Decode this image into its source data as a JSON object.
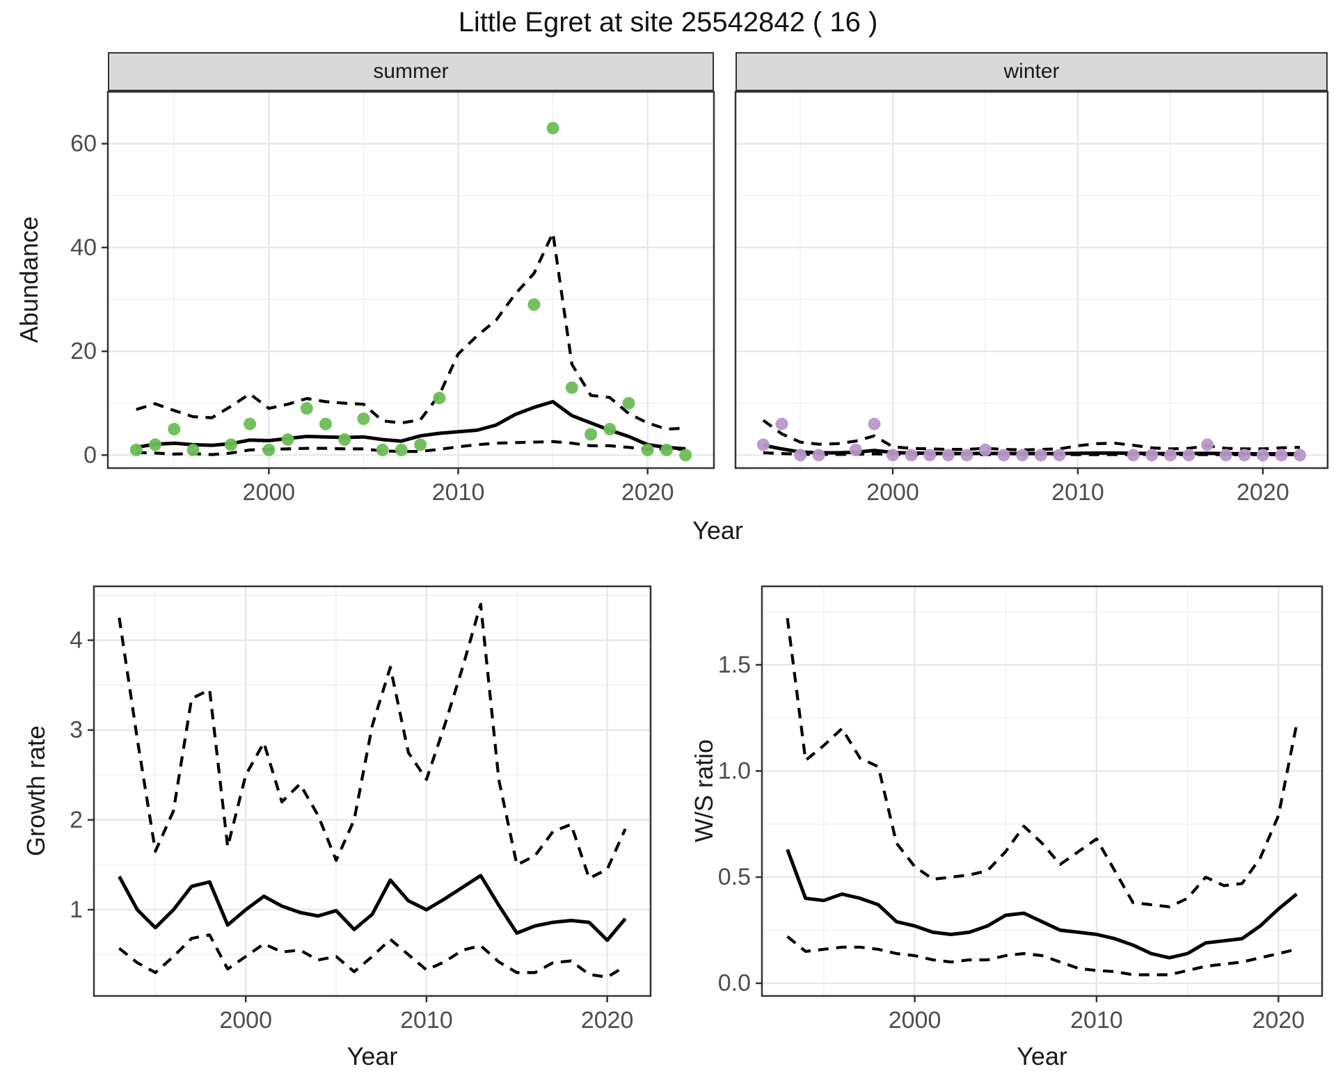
{
  "title": "Little Egret at site 25542842 ( 16 )",
  "axes": {
    "x_label_top": "Year",
    "x_label_growth": "Year",
    "x_label_ws": "Year",
    "abundance_label": "Abundance",
    "growth_label": "Growth rate",
    "ws_label": "W/S ratio"
  },
  "facets": {
    "summer": "summer",
    "winter": "winter"
  },
  "colors": {
    "summer_point": "#6cbd55",
    "winter_point": "#b897ca",
    "line": "#000000",
    "strip_bg": "#d9d9d9",
    "grid_major": "#e8e8e8",
    "grid_minor": "#f1f1f1",
    "panel_border": "#333333",
    "tick_text": "#4d4d4d"
  },
  "chart_data": [
    {
      "id": "abundance-summer",
      "type": "line",
      "facet": "summer",
      "xlabel": "Year",
      "ylabel": "Abundance",
      "xticks": [
        2000,
        2010,
        2020
      ],
      "yticks": [
        0,
        20,
        40,
        60
      ],
      "xlim": [
        1991.5,
        2023.5
      ],
      "ylim": [
        -2.5,
        70
      ],
      "x": [
        1993,
        1994,
        1995,
        1996,
        1997,
        1998,
        1999,
        2000,
        2001,
        2002,
        2003,
        2004,
        2005,
        2006,
        2007,
        2008,
        2009,
        2010,
        2011,
        2012,
        2013,
        2014,
        2015,
        2016,
        2017,
        2018,
        2019,
        2020,
        2021,
        2022
      ],
      "series": [
        {
          "name": "observed-counts",
          "kind": "points",
          "values": [
            1,
            2,
            5,
            1,
            null,
            2,
            6,
            1,
            3,
            9,
            6,
            3,
            7,
            1,
            1,
            2,
            11,
            null,
            null,
            null,
            null,
            29,
            63,
            13,
            4,
            5,
            10,
            1,
            1,
            0
          ]
        },
        {
          "name": "model-fit",
          "kind": "line",
          "style": "solid",
          "values": [
            1.5,
            2.1,
            2.3,
            2.0,
            1.9,
            2.2,
            2.9,
            2.8,
            3.2,
            3.6,
            3.5,
            3.4,
            3.5,
            3.0,
            2.7,
            3.7,
            4.2,
            4.5,
            4.8,
            5.8,
            7.8,
            9.2,
            10.3,
            7.6,
            6.2,
            4.8,
            3.6,
            2.0,
            1.5,
            1.2
          ]
        },
        {
          "name": "ci-upper",
          "kind": "line",
          "style": "dashed",
          "values": [
            8.8,
            9.9,
            8.6,
            7.4,
            7.2,
            9.4,
            11.8,
            9.0,
            9.8,
            10.9,
            10.3,
            10.0,
            9.8,
            6.6,
            6.2,
            6.8,
            11.6,
            19.5,
            23,
            26,
            31,
            35,
            42.8,
            17.5,
            11.5,
            11.1,
            8.0,
            6.2,
            5.0,
            5.2
          ]
        },
        {
          "name": "ci-lower",
          "kind": "line",
          "style": "dashed",
          "values": [
            0.5,
            0.4,
            0.2,
            0.3,
            0.1,
            0.4,
            1.0,
            1.1,
            1.2,
            1.3,
            1.3,
            1.2,
            1.2,
            0.8,
            0.7,
            0.7,
            1.1,
            1.6,
            2.0,
            2.3,
            2.4,
            2.5,
            2.6,
            2.3,
            1.8,
            1.8,
            1.5,
            1.1,
            1.2,
            1.1
          ]
        }
      ]
    },
    {
      "id": "abundance-winter",
      "type": "line",
      "facet": "winter",
      "xlabel": "Year",
      "ylabel": "Abundance",
      "xticks": [
        2000,
        2010,
        2020
      ],
      "yticks": [
        0,
        20,
        40,
        60
      ],
      "xlim": [
        1991.5,
        2023.5
      ],
      "ylim": [
        -2.5,
        70
      ],
      "x": [
        1993,
        1994,
        1995,
        1996,
        1997,
        1998,
        1999,
        2000,
        2001,
        2002,
        2003,
        2004,
        2005,
        2006,
        2007,
        2008,
        2009,
        2010,
        2011,
        2012,
        2013,
        2014,
        2015,
        2016,
        2017,
        2018,
        2019,
        2020,
        2021,
        2022
      ],
      "series": [
        {
          "name": "observed-counts",
          "kind": "points",
          "values": [
            2,
            6,
            0,
            0,
            null,
            1,
            6,
            0,
            0,
            0,
            0,
            0,
            1,
            0,
            0,
            0,
            0,
            null,
            null,
            null,
            0,
            0,
            0,
            0,
            2,
            0,
            0,
            0,
            0,
            0
          ]
        },
        {
          "name": "model-fit",
          "kind": "line",
          "style": "solid",
          "values": [
            1.9,
            1.2,
            0.6,
            0.45,
            0.45,
            0.55,
            0.9,
            0.5,
            0.4,
            0.35,
            0.3,
            0.3,
            0.35,
            0.3,
            0.3,
            0.3,
            0.3,
            0.35,
            0.4,
            0.4,
            0.35,
            0.3,
            0.3,
            0.3,
            0.35,
            0.3,
            0.25,
            0.25,
            0.25,
            0.25
          ]
        },
        {
          "name": "ci-upper",
          "kind": "line",
          "style": "dashed",
          "values": [
            6.7,
            4.1,
            2.5,
            2.1,
            2.2,
            2.7,
            3.7,
            1.6,
            1.3,
            1.2,
            1.1,
            1.1,
            1.3,
            1.1,
            1.0,
            1.1,
            1.2,
            1.8,
            2.2,
            2.3,
            1.9,
            1.4,
            1.2,
            1.3,
            1.8,
            1.3,
            1.2,
            1.2,
            1.4,
            1.5
          ]
        },
        {
          "name": "ci-lower",
          "kind": "line",
          "style": "dashed",
          "values": [
            0.45,
            0.3,
            0.15,
            0.12,
            0.12,
            0.15,
            0.25,
            0.12,
            0.1,
            0.09,
            0.08,
            0.08,
            0.09,
            0.08,
            0.08,
            0.08,
            0.08,
            0.09,
            0.1,
            0.1,
            0.09,
            0.08,
            0.08,
            0.08,
            0.09,
            0.08,
            0.07,
            0.07,
            0.07,
            0.07
          ]
        }
      ]
    },
    {
      "id": "growth-rate",
      "type": "line",
      "xlabel": "Year",
      "ylabel": "Growth rate",
      "xticks": [
        2000,
        2010,
        2020
      ],
      "yticks": [
        1,
        2,
        3,
        4
      ],
      "xlim": [
        1991.6,
        2022.4
      ],
      "ylim": [
        0.04,
        4.6
      ],
      "x": [
        1993,
        1994,
        1995,
        1996,
        1997,
        1998,
        1999,
        2000,
        2001,
        2002,
        2003,
        2004,
        2005,
        2006,
        2007,
        2008,
        2009,
        2010,
        2011,
        2012,
        2013,
        2014,
        2015,
        2016,
        2017,
        2018,
        2019,
        2020,
        2021
      ],
      "series": [
        {
          "name": "model-fit",
          "kind": "line",
          "style": "solid",
          "values": [
            1.37,
            1.0,
            0.8,
            1.0,
            1.26,
            1.31,
            0.83,
            1.0,
            1.15,
            1.04,
            0.97,
            0.93,
            0.99,
            0.78,
            0.95,
            1.33,
            1.1,
            1.0,
            1.12,
            1.25,
            1.38,
            1.05,
            0.74,
            0.82,
            0.86,
            0.88,
            0.86,
            0.66,
            0.9
          ]
        },
        {
          "name": "ci-upper",
          "kind": "line",
          "style": "dashed",
          "values": [
            4.25,
            2.9,
            1.65,
            2.1,
            3.35,
            3.45,
            1.7,
            2.5,
            2.86,
            2.2,
            2.4,
            2.05,
            1.55,
            2.0,
            3.05,
            3.7,
            2.75,
            2.45,
            3.05,
            3.7,
            4.4,
            2.45,
            1.5,
            1.6,
            1.87,
            1.95,
            1.35,
            1.45,
            1.9
          ]
        },
        {
          "name": "ci-lower",
          "kind": "line",
          "style": "dashed",
          "values": [
            0.57,
            0.41,
            0.3,
            0.48,
            0.68,
            0.72,
            0.34,
            0.48,
            0.62,
            0.53,
            0.55,
            0.44,
            0.48,
            0.31,
            0.48,
            0.67,
            0.5,
            0.33,
            0.42,
            0.55,
            0.6,
            0.42,
            0.3,
            0.3,
            0.41,
            0.43,
            0.28,
            0.25,
            0.37
          ]
        }
      ]
    },
    {
      "id": "ws-ratio",
      "type": "line",
      "xlabel": "Year",
      "ylabel": "W/S ratio",
      "xticks": [
        2000,
        2010,
        2020
      ],
      "yticks": [
        0.0,
        0.5,
        1.0,
        1.5
      ],
      "xlim": [
        1991.6,
        2022.4
      ],
      "ylim": [
        -0.06,
        1.87
      ],
      "x": [
        1993,
        1994,
        1995,
        1996,
        1997,
        1998,
        1999,
        2000,
        2001,
        2002,
        2003,
        2004,
        2005,
        2006,
        2007,
        2008,
        2009,
        2010,
        2011,
        2012,
        2013,
        2014,
        2015,
        2016,
        2017,
        2018,
        2019,
        2020,
        2021
      ],
      "series": [
        {
          "name": "model-fit",
          "kind": "line",
          "style": "solid",
          "values": [
            0.63,
            0.4,
            0.39,
            0.42,
            0.4,
            0.37,
            0.29,
            0.27,
            0.24,
            0.23,
            0.24,
            0.27,
            0.32,
            0.33,
            0.29,
            0.25,
            0.24,
            0.23,
            0.21,
            0.18,
            0.14,
            0.12,
            0.14,
            0.19,
            0.2,
            0.21,
            0.27,
            0.35,
            0.42
          ]
        },
        {
          "name": "ci-upper",
          "kind": "line",
          "style": "dashed",
          "values": [
            1.72,
            1.05,
            1.12,
            1.2,
            1.06,
            1.02,
            0.66,
            0.55,
            0.49,
            0.5,
            0.51,
            0.53,
            0.62,
            0.74,
            0.66,
            0.56,
            0.62,
            0.68,
            0.53,
            0.38,
            0.37,
            0.36,
            0.4,
            0.5,
            0.46,
            0.47,
            0.59,
            0.79,
            1.22
          ]
        },
        {
          "name": "ci-lower",
          "kind": "line",
          "style": "dashed",
          "values": [
            0.22,
            0.15,
            0.16,
            0.17,
            0.17,
            0.16,
            0.14,
            0.13,
            0.11,
            0.1,
            0.11,
            0.11,
            0.13,
            0.14,
            0.13,
            0.1,
            0.07,
            0.06,
            0.055,
            0.04,
            0.04,
            0.04,
            0.06,
            0.08,
            0.09,
            0.1,
            0.12,
            0.14,
            0.16
          ]
        }
      ]
    }
  ]
}
